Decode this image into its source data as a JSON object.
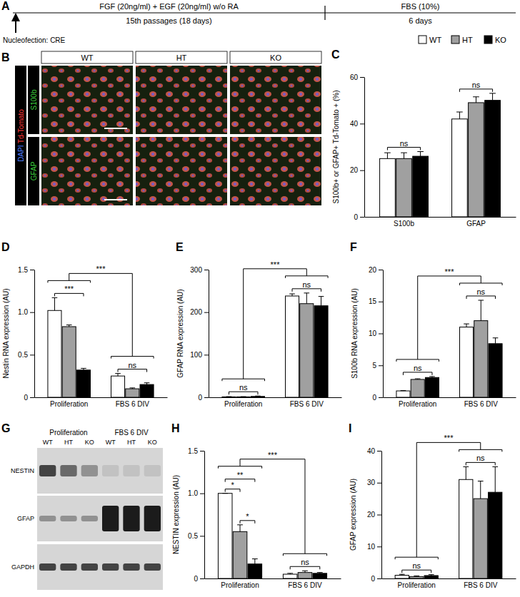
{
  "panel_labels": [
    "A",
    "B",
    "C",
    "D",
    "E",
    "F",
    "G",
    "H",
    "I"
  ],
  "timeline": {
    "phases": [
      {
        "treatment": "FGF (20ng/ml) + EGF (20ng/ml) w/o RA",
        "duration": "15th passages (18 days)"
      },
      {
        "treatment": "FBS (10%)",
        "duration": "6 days"
      }
    ],
    "event": "Nucleofection: CRE"
  },
  "micrographs": {
    "columns": [
      "WT",
      "HT",
      "KO"
    ],
    "shared_stains": [
      {
        "text": "DAPI",
        "color": "#4f7dff"
      },
      {
        "text": "Td-Tomato",
        "color": "#ff3b3b"
      }
    ],
    "rows": [
      {
        "text": "S100b",
        "color": "#3ccf3c"
      },
      {
        "text": "GFAP",
        "color": "#3ccf3c"
      }
    ]
  },
  "western_blot": {
    "groups": [
      "Proliferation",
      "FBS 6 DIV"
    ],
    "lanes": [
      "WT",
      "HT",
      "KO",
      "WT",
      "HT",
      "KO"
    ],
    "proteins": [
      "NESTIN",
      "GFAP",
      "GAPDH"
    ]
  },
  "chart_data": [
    {
      "type": "bar",
      "y_label": "S100b+ or GFAP+ Td-Tomato + (%)",
      "categories": [
        "S100b",
        "GFAP"
      ],
      "ylim": [
        0,
        60
      ],
      "yticks": [
        0,
        20,
        40,
        60
      ],
      "legend": "top-right",
      "series": [
        {
          "name": "WT",
          "color": "#ffffff",
          "values": [
            25,
            42
          ],
          "errors": [
            2.5,
            3
          ]
        },
        {
          "name": "HT",
          "color": "#a0a0a0",
          "values": [
            25,
            49
          ],
          "errors": [
            2.5,
            2.5
          ]
        },
        {
          "name": "KO",
          "color": "#000000",
          "values": [
            26,
            50
          ],
          "errors": [
            2,
            3
          ]
        }
      ],
      "annotations": [
        {
          "text": "ns",
          "category": 0,
          "series": [
            0,
            2
          ]
        },
        {
          "text": "ns",
          "category": 1,
          "series": [
            0,
            2
          ]
        }
      ]
    },
    {
      "type": "bar",
      "y_label": "Nestin RNA expression (AU)",
      "categories": [
        "Proliferation",
        "FBS 6 DIV"
      ],
      "ylim": [
        0,
        1.5
      ],
      "yticks": [
        0,
        0.5,
        {
          "value": 1,
          "label": "1.0"
        },
        1.5
      ],
      "series": [
        {
          "name": "WT",
          "color": "#ffffff",
          "values": [
            1.02,
            0.25
          ],
          "errors": [
            0.15,
            0.03
          ]
        },
        {
          "name": "HT",
          "color": "#a0a0a0",
          "values": [
            0.83,
            0.1
          ],
          "errors": [
            0.02,
            0.01
          ]
        },
        {
          "name": "KO",
          "color": "#000000",
          "values": [
            0.32,
            0.15
          ],
          "errors": [
            0.02,
            0.02
          ]
        }
      ],
      "annotations": [
        {
          "text": "***",
          "category": 0,
          "series": [
            0,
            2
          ]
        },
        {
          "text": "ns",
          "category": 1,
          "series": [
            0,
            2
          ]
        },
        {
          "text": "***",
          "categories": [
            0,
            1
          ]
        }
      ]
    },
    {
      "type": "bar",
      "y_label": "GFAP RNA expression (AU)",
      "categories": [
        "Proliferation",
        "FBS 6 DIV"
      ],
      "ylim": [
        0,
        300
      ],
      "yticks": [
        0,
        100,
        200,
        300
      ],
      "series": [
        {
          "name": "WT",
          "color": "#ffffff",
          "values": [
            1,
            238
          ],
          "errors": [
            0.5,
            5
          ]
        },
        {
          "name": "HT",
          "color": "#a0a0a0",
          "values": [
            1,
            220
          ],
          "errors": [
            0.5,
            25
          ]
        },
        {
          "name": "KO",
          "color": "#000000",
          "values": [
            2,
            215
          ],
          "errors": [
            1,
            22
          ]
        }
      ],
      "annotations": [
        {
          "text": "ns",
          "category": 0,
          "series": [
            0,
            2
          ]
        },
        {
          "text": "ns",
          "category": 1,
          "series": [
            0,
            2
          ]
        },
        {
          "text": "***",
          "categories": [
            0,
            1
          ]
        }
      ]
    },
    {
      "type": "bar",
      "y_label": "S100b RNA expression (AU)",
      "categories": [
        "Proliferation",
        "FBS 6 DIV"
      ],
      "ylim": [
        0,
        20
      ],
      "yticks": [
        0,
        5,
        10,
        15,
        20
      ],
      "series": [
        {
          "name": "WT",
          "color": "#ffffff",
          "values": [
            1,
            11
          ],
          "errors": [
            0.05,
            0.5
          ]
        },
        {
          "name": "HT",
          "color": "#a0a0a0",
          "values": [
            2.8,
            12
          ],
          "errors": [
            0.1,
            3.2
          ]
        },
        {
          "name": "KO",
          "color": "#000000",
          "values": [
            3.1,
            8.4
          ],
          "errors": [
            0.15,
            0.9
          ]
        }
      ],
      "annotations": [
        {
          "text": "ns",
          "category": 0,
          "series": [
            0,
            2
          ]
        },
        {
          "text": "ns",
          "category": 1,
          "series": [
            0,
            2
          ]
        },
        {
          "text": "***",
          "categories": [
            0,
            1
          ]
        }
      ]
    },
    {
      "type": "bar",
      "y_label": "NESTIN expression (AU)",
      "categories": [
        "Proliferation",
        "FBS 6 DIV"
      ],
      "ylim": [
        0,
        1.5
      ],
      "yticks": [
        0,
        0.5,
        {
          "value": 1,
          "label": "1.0"
        },
        1.5
      ],
      "series": [
        {
          "name": "WT",
          "color": "#ffffff",
          "values": [
            1,
            0.05
          ],
          "errors": [
            0,
            0.01
          ]
        },
        {
          "name": "HT",
          "color": "#a0a0a0",
          "values": [
            0.55,
            0.07
          ],
          "errors": [
            0.08,
            0.02
          ]
        },
        {
          "name": "KO",
          "color": "#000000",
          "values": [
            0.17,
            0.06
          ],
          "errors": [
            0.06,
            0.01
          ]
        }
      ],
      "annotations": [
        {
          "text": "*",
          "category": 0,
          "series": [
            0,
            1
          ]
        },
        {
          "text": "*",
          "category": 0,
          "series": [
            1,
            2
          ]
        },
        {
          "text": "**",
          "category": 0,
          "series": [
            0,
            2
          ]
        },
        {
          "text": "ns",
          "category": 1,
          "series": [
            0,
            2
          ]
        },
        {
          "text": "***",
          "categories": [
            0,
            1
          ]
        }
      ]
    },
    {
      "type": "bar",
      "y_label": "GFAP expression (AU)",
      "categories": [
        "Proliferation",
        "FBS 6 DIV"
      ],
      "ylim": [
        0,
        40
      ],
      "yticks": [
        0,
        10,
        20,
        30,
        40
      ],
      "series": [
        {
          "name": "WT",
          "color": "#ffffff",
          "values": [
            1,
            31
          ],
          "errors": [
            0.3,
            4
          ]
        },
        {
          "name": "HT",
          "color": "#a0a0a0",
          "values": [
            0.6,
            25
          ],
          "errors": [
            0.2,
            5.5
          ]
        },
        {
          "name": "KO",
          "color": "#000000",
          "values": [
            0.9,
            27
          ],
          "errors": [
            0.3,
            8
          ]
        }
      ],
      "annotations": [
        {
          "text": "ns",
          "category": 0,
          "series": [
            0,
            2
          ]
        },
        {
          "text": "ns",
          "category": 1,
          "series": [
            0,
            2
          ]
        },
        {
          "text": "***",
          "categories": [
            0,
            1
          ]
        }
      ]
    }
  ]
}
